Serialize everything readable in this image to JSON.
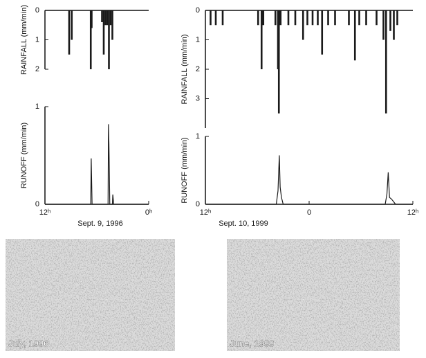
{
  "chart_data": [
    {
      "type": "bar",
      "ylabel": "RAINFALL (mm/min)",
      "inverted": true,
      "color": "#1a1a1a",
      "xlim": [
        12,
        24
      ],
      "ylim": [
        0,
        2
      ],
      "yticks": [
        0,
        1,
        2
      ],
      "x": [
        14.8,
        15.1,
        17.3,
        17.4,
        18.6,
        18.8,
        19.0,
        19.2,
        19.4,
        19.6,
        19.8
      ],
      "values": [
        1.5,
        1.0,
        2.0,
        0.6,
        0.4,
        1.5,
        0.5,
        0.5,
        2.0,
        0.5,
        1.0
      ]
    },
    {
      "type": "line",
      "ylabel": "RUNOFF (mm/min)",
      "xlabel": "Sept. 9, 1996",
      "color": "#1a1a1a",
      "xlim": [
        12,
        24
      ],
      "ylim": [
        0,
        1
      ],
      "yticks": [
        0,
        1
      ],
      "xticks": [
        {
          "value": 12,
          "label": "12ʰ"
        },
        {
          "value": 24,
          "label": "0ʰ"
        }
      ],
      "x": [
        12,
        17.3,
        17.35,
        17.45,
        19.3,
        19.35,
        19.4,
        19.5,
        19.8,
        19.85,
        19.95,
        24
      ],
      "values": [
        0,
        0,
        0.47,
        0,
        0,
        0.82,
        0.63,
        0,
        0,
        0.1,
        0,
        0
      ]
    },
    {
      "type": "bar",
      "ylabel": "RAINFALL (mm/min)",
      "inverted": true,
      "color": "#1a1a1a",
      "xlim": [
        12,
        36
      ],
      "ylim": [
        0,
        4
      ],
      "yticks": [
        0,
        1,
        2,
        3
      ],
      "x": [
        12.6,
        13.2,
        14.0,
        18.1,
        18.5,
        18.7,
        20.1,
        20.4,
        20.5,
        20.7,
        21.6,
        22.4,
        23.3,
        23.8,
        24.4,
        25.0,
        25.5,
        26.2,
        27.0,
        28.6,
        29.3,
        29.8,
        30.6,
        31.8,
        32.6,
        32.9,
        33.4,
        33.8,
        34.2
      ],
      "values": [
        0.5,
        0.5,
        0.5,
        0.5,
        2.0,
        0.5,
        0.5,
        2.0,
        3.5,
        0.5,
        0.5,
        0.5,
        1.0,
        0.5,
        0.5,
        0.5,
        1.5,
        0.5,
        0.5,
        0.5,
        1.7,
        0.5,
        0.5,
        0.5,
        1.0,
        3.5,
        0.7,
        1.0,
        0.5
      ]
    },
    {
      "type": "line",
      "ylabel": "RUNOFF (mm/min)",
      "xlabel": "Sept. 10, 1999",
      "color": "#1a1a1a",
      "xlim": [
        12,
        36
      ],
      "ylim": [
        0,
        1
      ],
      "yticks": [
        0,
        1
      ],
      "xticks": [
        {
          "value": 12,
          "label": "12ʰ"
        },
        {
          "value": 24,
          "label": "0"
        },
        {
          "value": 36,
          "label": "12ʰ"
        }
      ],
      "x": [
        12,
        20.2,
        20.4,
        20.55,
        20.65,
        20.8,
        21.0,
        32.8,
        33.0,
        33.15,
        33.3,
        33.5,
        33.7,
        34,
        36
      ],
      "values": [
        0,
        0,
        0.2,
        0.72,
        0.25,
        0.1,
        0,
        0,
        0.15,
        0.47,
        0.1,
        0.08,
        0.05,
        0,
        0
      ]
    }
  ],
  "photos": [
    {
      "caption": "July, 1996"
    },
    {
      "caption": "June, 1999"
    }
  ]
}
